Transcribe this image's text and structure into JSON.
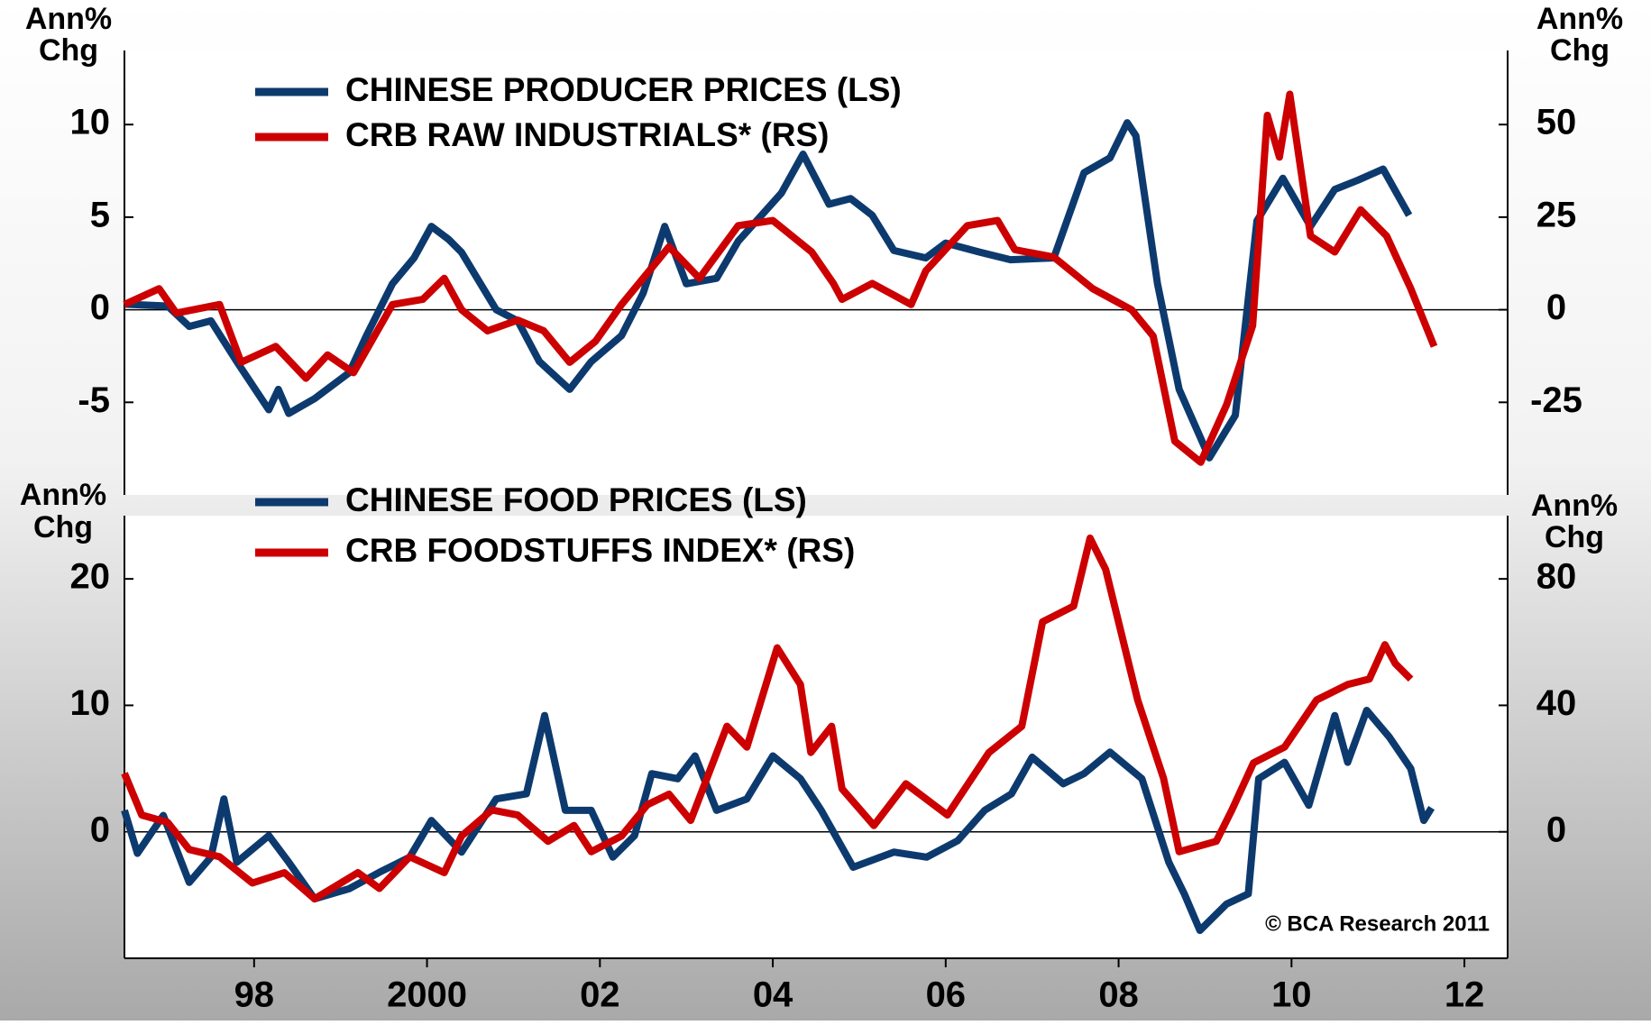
{
  "chart_data": [
    {
      "type": "line",
      "ylabel": [
        "Ann%",
        "Chg"
      ],
      "y2label": [
        "Ann%",
        "Chg"
      ],
      "xlim": [
        1997,
        2013
      ],
      "ylim": [
        -10,
        14
      ],
      "yticks": [
        -5,
        0,
        5,
        10
      ],
      "y2lim": [
        -50,
        70
      ],
      "y2ticks": [
        -25,
        0,
        25,
        50
      ],
      "series": [
        {
          "name": "CHINESE PRODUCER PRICES (LS)",
          "color": "#0d3a6e",
          "axis": "y",
          "x": [
            1997.0,
            1997.5,
            1997.75,
            1998.0,
            1998.3,
            1998.67,
            1998.78,
            1998.9,
            1999.2,
            1999.6,
            1999.8,
            2000.1,
            2000.35,
            2000.55,
            2000.75,
            2000.9,
            2001.3,
            2001.55,
            2001.8,
            2002.15,
            2002.4,
            2002.75,
            2003.0,
            2003.25,
            2003.5,
            2003.85,
            2004.1,
            2004.6,
            2004.85,
            2005.15,
            2005.4,
            2005.65,
            2005.9,
            2006.27,
            2006.5,
            2006.9,
            2007.25,
            2007.75,
            2008.1,
            2008.4,
            2008.6,
            2008.7,
            2008.95,
            2009.2,
            2009.55,
            2009.85,
            2010.1,
            2010.4,
            2010.72,
            2011.0,
            2011.27,
            2011.56,
            2011.86
          ],
          "values": [
            0.3,
            0.2,
            -0.9,
            -0.6,
            -2.8,
            -5.4,
            -4.3,
            -5.6,
            -4.8,
            -3.4,
            -1.4,
            1.4,
            2.8,
            4.5,
            3.8,
            3.1,
            0,
            -0.6,
            -2.8,
            -4.3,
            -2.8,
            -1.4,
            0.9,
            4.5,
            1.4,
            1.7,
            3.7,
            6.3,
            8.4,
            5.7,
            6.0,
            5.1,
            3.2,
            2.8,
            3.6,
            3.1,
            2.7,
            2.8,
            7.4,
            8.2,
            10.1,
            9.4,
            1.4,
            -4.3,
            -8.0,
            -5.7,
            4.8,
            7.1,
            4.5,
            6.5,
            7.0,
            7.6,
            5.1
          ]
        },
        {
          "name": "CRB RAW INDUSTRIALS* (RS)",
          "color": "#cc0000",
          "axis": "y2",
          "x": [
            1997.0,
            1997.4,
            1997.6,
            1998.1,
            1998.35,
            1998.75,
            1999.1,
            1999.35,
            1999.65,
            2000.1,
            2000.45,
            2000.7,
            2000.9,
            2001.2,
            2001.55,
            2001.85,
            2002.15,
            2002.45,
            2002.75,
            2003.05,
            2003.3,
            2003.65,
            2004.1,
            2004.5,
            2004.95,
            2005.2,
            2005.3,
            2005.65,
            2006.1,
            2006.27,
            2006.75,
            2007.1,
            2007.3,
            2007.75,
            2008.2,
            2008.65,
            2008.9,
            2009.15,
            2009.45,
            2009.75,
            2010.05,
            2010.22,
            2010.36,
            2010.48,
            2010.72,
            2011.0,
            2011.3,
            2011.6,
            2011.88,
            2012.15
          ],
          "values": [
            1.4,
            5.7,
            -0.9,
            1.4,
            -14.2,
            -9.9,
            -18.5,
            -12.2,
            -17,
            1.4,
            2.8,
            8.5,
            0,
            -5.7,
            -2.8,
            -5.7,
            -14.2,
            -8.5,
            1.4,
            9.9,
            17,
            8.5,
            22.7,
            24.1,
            15.6,
            7.1,
            2.8,
            7.1,
            1.4,
            10.5,
            22.7,
            24.1,
            16.2,
            14.2,
            5.7,
            0,
            -7.1,
            -35.5,
            -41.2,
            -25.6,
            -4.3,
            52.5,
            41.2,
            58.2,
            19.9,
            15.6,
            27,
            19.9,
            5.7,
            -9.9
          ]
        }
      ]
    },
    {
      "type": "line",
      "ylabel": [
        "Ann%",
        "Chg"
      ],
      "y2label": [
        "Ann%",
        "Chg"
      ],
      "xlim": [
        1997,
        2013
      ],
      "xticks": [
        {
          "value": 1998.5,
          "label": "98"
        },
        {
          "value": 2000.5,
          "label": "2000"
        },
        {
          "value": 2002.5,
          "label": "02"
        },
        {
          "value": 2004.5,
          "label": "04"
        },
        {
          "value": 2006.5,
          "label": "06"
        },
        {
          "value": 2008.5,
          "label": "08"
        },
        {
          "value": 2010.5,
          "label": "10"
        },
        {
          "value": 2012.5,
          "label": "12"
        }
      ],
      "ylim": [
        -10,
        25
      ],
      "yticks": [
        0,
        10,
        20
      ],
      "y2lim": [
        -40,
        100
      ],
      "y2ticks": [
        0,
        40,
        80
      ],
      "annotation": "© BCA Research 2011",
      "series": [
        {
          "name": "CHINESE FOOD PRICES (LS)",
          "color": "#0d3a6e",
          "axis": "y",
          "x": [
            1997.0,
            1997.15,
            1997.45,
            1997.75,
            1998.0,
            1998.15,
            1998.3,
            1998.67,
            1998.9,
            1999.2,
            1999.6,
            1999.95,
            2000.3,
            2000.55,
            2000.9,
            2001.3,
            2001.65,
            2001.86,
            2002.1,
            2002.4,
            2002.65,
            2002.9,
            2003.1,
            2003.4,
            2003.6,
            2003.85,
            2004.2,
            2004.5,
            2004.82,
            2005.06,
            2005.43,
            2005.9,
            2006.28,
            2006.64,
            2006.95,
            2007.26,
            2007.5,
            2007.86,
            2008.1,
            2008.4,
            2008.77,
            2009.08,
            2009.26,
            2009.44,
            2009.75,
            2010.0,
            2010.12,
            2010.42,
            2010.7,
            2011.0,
            2011.15,
            2011.37,
            2011.63,
            2011.88,
            2012.03,
            2012.12
          ],
          "values": [
            1.7,
            -1.7,
            1.3,
            -4.0,
            -2.0,
            2.6,
            -2.4,
            -0.3,
            -2.4,
            -5.3,
            -4.5,
            -3.2,
            -2.0,
            0.9,
            -1.6,
            2.6,
            3.0,
            9.2,
            1.7,
            1.7,
            -2.0,
            -0.3,
            4.6,
            4.2,
            6.0,
            1.7,
            2.6,
            6.0,
            4.2,
            1.7,
            -2.8,
            -1.6,
            -2.0,
            -0.7,
            1.7,
            3.0,
            5.9,
            3.8,
            4.6,
            6.3,
            4.2,
            -2.4,
            -4.9,
            -7.8,
            -5.7,
            -4.9,
            4.2,
            5.5,
            2.1,
            9.2,
            5.5,
            9.6,
            7.5,
            5.0,
            0.9,
            1.9
          ]
        },
        {
          "name": "CRB FOODSTUFFS INDEX* (RS)",
          "color": "#cc0000",
          "axis": "y2",
          "x": [
            1997.0,
            1997.2,
            1997.5,
            1997.75,
            1998.1,
            1998.48,
            1998.85,
            1999.2,
            1999.7,
            1999.95,
            2000.3,
            2000.7,
            2000.9,
            2001.25,
            2001.55,
            2001.9,
            2002.2,
            2002.4,
            2002.75,
            2003.05,
            2003.3,
            2003.55,
            2003.97,
            2004.2,
            2004.55,
            2004.82,
            2004.94,
            2005.18,
            2005.3,
            2005.67,
            2006.04,
            2006.52,
            2007.0,
            2007.38,
            2007.62,
            2007.98,
            2008.17,
            2008.35,
            2008.72,
            2009.02,
            2009.2,
            2009.63,
            2009.81,
            2010.06,
            2010.42,
            2010.79,
            2011.15,
            2011.4,
            2011.58,
            2011.7,
            2011.88
          ],
          "values": [
            18.5,
            5.3,
            3.0,
            -5.6,
            -7.9,
            -16.2,
            -12.9,
            -21.2,
            -12.9,
            -17.9,
            -7.9,
            -12.9,
            -1.3,
            6.9,
            5.3,
            -3.0,
            2.0,
            -6.3,
            -1.3,
            8.6,
            11.9,
            3.6,
            33.4,
            26.8,
            58.2,
            46.6,
            25.1,
            33.4,
            13.6,
            2.0,
            15.2,
            5.3,
            25.1,
            33.4,
            66.4,
            71.4,
            92.9,
            83.0,
            41.7,
            16.9,
            -6.3,
            -3.0,
            6.9,
            21.8,
            26.8,
            41.7,
            46.6,
            48.3,
            59.2,
            53.2,
            48.3
          ]
        }
      ]
    }
  ]
}
